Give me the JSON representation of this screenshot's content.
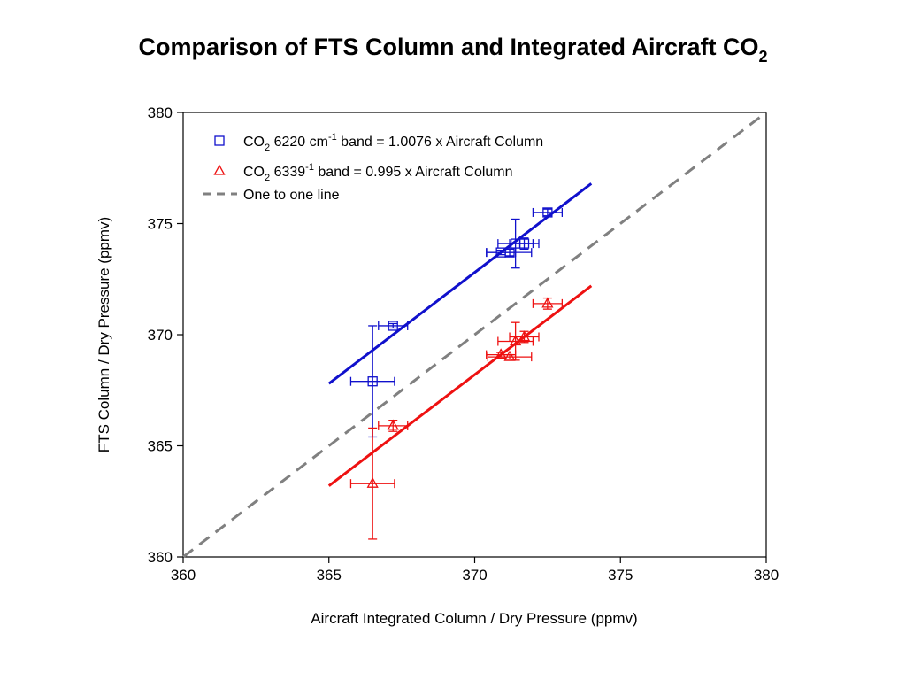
{
  "chart_data": {
    "type": "scatter",
    "title": {
      "main": "Comparison of FTS Column and Integrated Aircraft CO",
      "subscript": "2"
    },
    "xlabel": "Aircraft Integrated Column / Dry Pressure (ppmv)",
    "ylabel": "FTS Column / Dry Pressure (ppmv)",
    "xlim": [
      360,
      380
    ],
    "ylim": [
      360,
      380
    ],
    "xticks": [
      360,
      365,
      370,
      375,
      380
    ],
    "yticks": [
      360,
      365,
      370,
      375,
      380
    ],
    "grid": false,
    "legend_position": "top-left",
    "series": [
      {
        "legend": [
          "CO",
          "2",
          " 6220 cm",
          "-1",
          " band = 1.0076 x Aircraft Column"
        ],
        "marker": "square",
        "color": "#1010cc",
        "points": [
          {
            "x": 366.5,
            "y": 367.9,
            "xerr": 0.75,
            "yerr": 2.5
          },
          {
            "x": 367.2,
            "y": 370.4,
            "xerr": 0.5,
            "yerr": 0.1
          },
          {
            "x": 370.9,
            "y": 373.7,
            "xerr": 0.5,
            "yerr": 0.1
          },
          {
            "x": 371.2,
            "y": 373.7,
            "xerr": 0.75,
            "yerr": 0.15
          },
          {
            "x": 371.4,
            "y": 374.1,
            "xerr": 0.6,
            "yerr": 1.1
          },
          {
            "x": 371.7,
            "y": 374.1,
            "xerr": 0.5,
            "yerr": 0.25
          },
          {
            "x": 372.5,
            "y": 375.5,
            "xerr": 0.5,
            "yerr": 0.15
          }
        ],
        "fit_line": {
          "x": [
            365.0,
            374.0
          ],
          "y": [
            367.8,
            376.8
          ]
        }
      },
      {
        "legend": [
          "CO",
          "2",
          " 6339",
          "-1",
          " band  = 0.995 x Aircraft Column"
        ],
        "marker": "triangle",
        "color": "#ee1111",
        "points": [
          {
            "x": 366.5,
            "y": 363.3,
            "xerr": 0.75,
            "yerr": 2.5
          },
          {
            "x": 367.2,
            "y": 365.9,
            "xerr": 0.5,
            "yerr": 0.25
          },
          {
            "x": 370.9,
            "y": 369.1,
            "xerr": 0.5,
            "yerr": 0.1
          },
          {
            "x": 371.2,
            "y": 369.0,
            "xerr": 0.75,
            "yerr": 0.1
          },
          {
            "x": 371.4,
            "y": 369.7,
            "xerr": 0.6,
            "yerr": 0.85
          },
          {
            "x": 371.7,
            "y": 369.9,
            "xerr": 0.5,
            "yerr": 0.25
          },
          {
            "x": 372.5,
            "y": 371.4,
            "xerr": 0.5,
            "yerr": 0.25
          }
        ],
        "fit_line": {
          "x": [
            365.0,
            374.0
          ],
          "y": [
            363.2,
            372.2
          ]
        }
      }
    ],
    "reference_line": {
      "legend": "One to one line",
      "color": "#808080",
      "style": "dashed",
      "x": [
        360,
        380
      ],
      "y": [
        360,
        380
      ]
    }
  }
}
